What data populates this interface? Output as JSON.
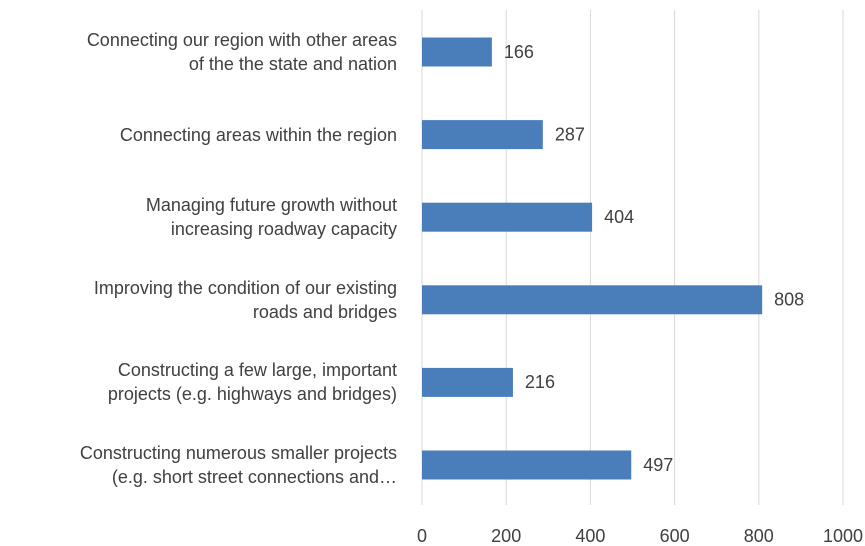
{
  "chart_data": {
    "type": "bar",
    "orientation": "horizontal",
    "categories": [
      "Connecting our region with other areas\nof the the state and nation",
      "Connecting areas within the region",
      "Managing future growth without\nincreasing roadway capacity",
      "Improving the condition of our existing\nroads and bridges",
      "Constructing a few large, important\nprojects (e.g. highways and bridges)",
      "Constructing numerous smaller projects\n(e.g. short street connections and…"
    ],
    "values": [
      166,
      287,
      404,
      808,
      216,
      497
    ],
    "color": "#4a7ebb",
    "xlim": [
      0,
      1000
    ],
    "xticks": [
      0,
      200,
      400,
      600,
      800,
      1000
    ],
    "grid": true
  }
}
